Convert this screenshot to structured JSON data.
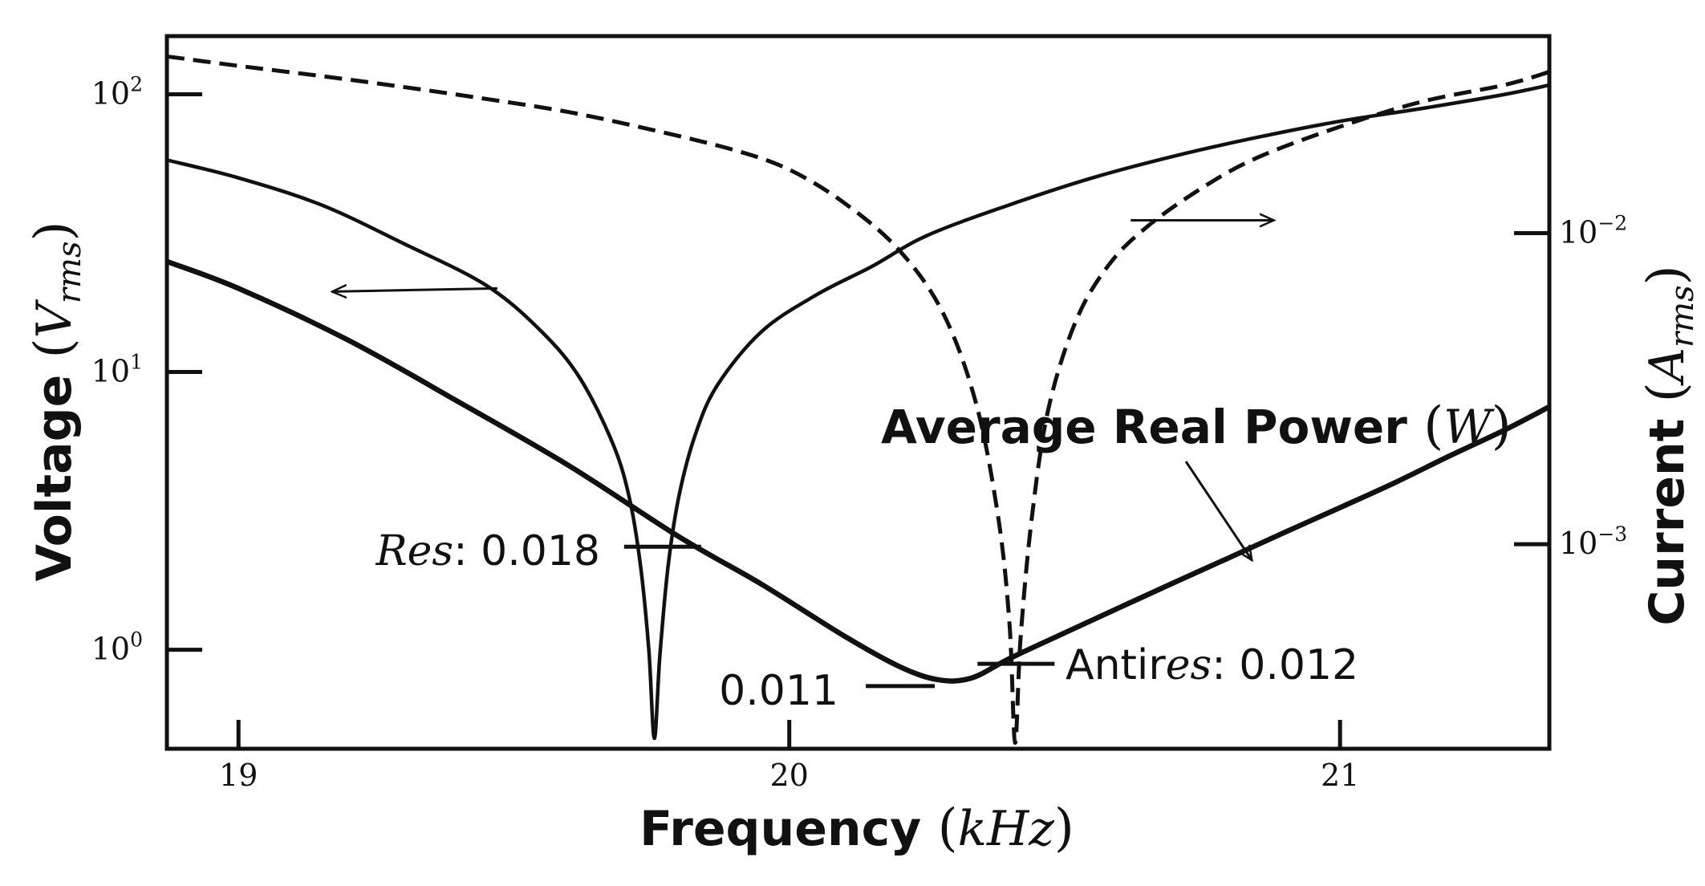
{
  "chart_data": {
    "type": "line",
    "x_axis": {
      "label": "Frequency",
      "unit": "kHz",
      "range": [
        18.87,
        21.38
      ],
      "ticks": [
        19,
        20,
        21
      ],
      "tick_labels": [
        "19",
        "20",
        "21"
      ]
    },
    "y_axis_left": {
      "label": "Voltage",
      "unit": "V",
      "unit_sub": "rms",
      "scale": "log",
      "range": [
        0.44,
        162
      ],
      "ticks": [
        1,
        10,
        100
      ],
      "tick_labels": [
        {
          "base": "10",
          "exp": "0"
        },
        {
          "base": "10",
          "exp": "1"
        },
        {
          "base": "10",
          "exp": "2"
        }
      ]
    },
    "y_axis_right": {
      "label": "Current",
      "unit": "A",
      "unit_sub": "rms",
      "scale": "log",
      "range": [
        0.00022,
        0.043
      ],
      "ticks": [
        0.001,
        0.01
      ],
      "tick_labels": [
        {
          "base": "10",
          "exp": "−3"
        },
        {
          "base": "10",
          "exp": "−2"
        }
      ]
    },
    "series": [
      {
        "axis": "left",
        "style": "solid",
        "x": [
          18.87,
          19.0,
          19.15,
          19.3,
          19.45,
          19.55,
          19.62,
          19.68,
          19.71,
          19.73,
          19.745,
          19.755,
          19.765,
          19.78,
          19.8,
          19.83,
          19.87,
          19.95,
          20.05,
          20.15,
          20.25,
          20.4,
          20.55,
          20.7,
          20.85,
          21.0,
          21.15,
          21.3,
          21.38
        ],
        "y": [
          58,
          50,
          40,
          29,
          20.5,
          14,
          9.5,
          5.5,
          3.5,
          2.0,
          1.0,
          0.48,
          0.95,
          2.0,
          3.6,
          6.0,
          9.0,
          14,
          19,
          24,
          31,
          40,
          50,
          60,
          70,
          80,
          89,
          100,
          108
        ]
      },
      {
        "axis": "right",
        "style": "dashed",
        "x": [
          18.87,
          19.0,
          19.15,
          19.3,
          19.45,
          19.6,
          19.75,
          19.9,
          20.0,
          20.1,
          20.2,
          20.28,
          20.34,
          20.38,
          20.4,
          20.41,
          20.42,
          20.44,
          20.47,
          20.52,
          20.58,
          20.65,
          20.75,
          20.85,
          21.0,
          21.15,
          21.3,
          21.38
        ],
        "y": [
          0.037,
          0.0345,
          0.032,
          0.0295,
          0.027,
          0.0245,
          0.0215,
          0.0185,
          0.016,
          0.0125,
          0.0088,
          0.0055,
          0.0028,
          0.0012,
          0.00055,
          0.00023,
          0.0005,
          0.0012,
          0.0027,
          0.0052,
          0.0079,
          0.0105,
          0.014,
          0.0175,
          0.022,
          0.0265,
          0.03,
          0.033
        ]
      },
      {
        "axis": "left",
        "style": "solid-thick",
        "x": [
          18.87,
          19.0,
          19.2,
          19.4,
          19.6,
          19.8,
          19.95,
          20.1,
          20.2,
          20.27,
          20.33,
          20.4,
          20.5,
          20.6,
          20.7,
          20.8,
          20.9,
          21.0,
          21.1,
          21.2,
          21.3,
          21.38
        ],
        "y": [
          25,
          20,
          13,
          7.8,
          4.6,
          2.55,
          1.72,
          1.12,
          0.87,
          0.78,
          0.79,
          0.93,
          1.15,
          1.42,
          1.75,
          2.15,
          2.65,
          3.25,
          4.0,
          5.0,
          6.2,
          7.5
        ]
      }
    ],
    "annotations": {
      "series_title": "Average Real Power",
      "series_unit": "W",
      "res_label": "Res",
      "res_value": ": 0.018",
      "min_value": "0.011",
      "antires_prefix": "Antir",
      "antires_italic": "es",
      "antires_value": ": 0.012",
      "res_marker": {
        "x": 19.77,
        "y": 2.35
      },
      "antires_marker": {
        "x": 20.4,
        "y": 0.89
      },
      "min_marker": {
        "x": 20.27,
        "y": 0.76
      },
      "arrow_left": {
        "x_from": 19.47,
        "x_to": 19.17,
        "y": 20
      },
      "arrow_right": {
        "x_from": 20.62,
        "x_to": 20.88,
        "y": 0.011
      },
      "pointer": {
        "x": 20.84,
        "y": 2.1
      }
    }
  }
}
